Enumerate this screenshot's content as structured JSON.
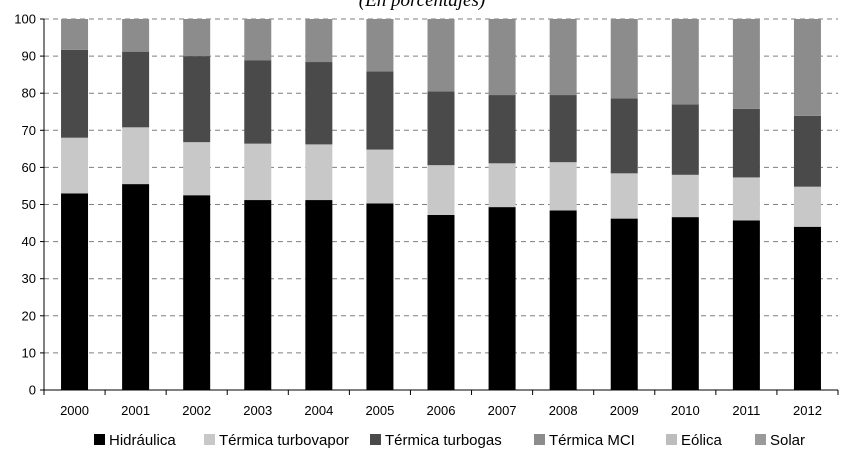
{
  "chart_data": {
    "type": "bar",
    "stacked": true,
    "subtitle": "(En porcentajes)",
    "xlabel": "",
    "ylabel": "",
    "ylim": [
      0,
      100
    ],
    "yticks": [
      0,
      10,
      20,
      30,
      40,
      50,
      60,
      70,
      80,
      90,
      100
    ],
    "grid": true,
    "legend_position": "bottom",
    "categories": [
      "2000",
      "2001",
      "2002",
      "2003",
      "2004",
      "2005",
      "2006",
      "2007",
      "2008",
      "2009",
      "2010",
      "2011",
      "2012"
    ],
    "series": [
      {
        "name": "Hidráulica",
        "color": "#000000",
        "values": [
          53,
          55.5,
          52.5,
          51.2,
          51.2,
          50.3,
          47.2,
          49.3,
          48.4,
          46.2,
          46.6,
          45.7,
          44.0
        ]
      },
      {
        "name": "Térmica turbovapor",
        "color": "#c8c8c8",
        "values": [
          15,
          15.3,
          14.3,
          15.2,
          15,
          14.5,
          13.4,
          11.8,
          13.0,
          12.2,
          11.4,
          11.6,
          10.8
        ]
      },
      {
        "name": "Térmica turbogas",
        "color": "#4a4a4a",
        "values": [
          23.7,
          20.4,
          23.2,
          22.5,
          22.2,
          21.1,
          19.9,
          18.4,
          18.1,
          20.2,
          19.0,
          18.5,
          19.1
        ]
      },
      {
        "name": "Térmica MCI",
        "color": "#8c8c8c",
        "values": [
          8.3,
          8.8,
          10.0,
          11.1,
          11.6,
          14.1,
          19.5,
          20.5,
          20.5,
          21.4,
          23.0,
          24.2,
          26.1
        ]
      },
      {
        "name": "Eólica",
        "color": "#bdbdbd",
        "values": [
          0,
          0,
          0,
          0,
          0,
          0,
          0,
          0,
          0,
          0,
          0,
          0,
          0
        ]
      },
      {
        "name": "Solar",
        "color": "#9a9a9a",
        "values": [
          0,
          0,
          0,
          0,
          0,
          0,
          0,
          0,
          0,
          0,
          0,
          0,
          0
        ]
      }
    ]
  }
}
